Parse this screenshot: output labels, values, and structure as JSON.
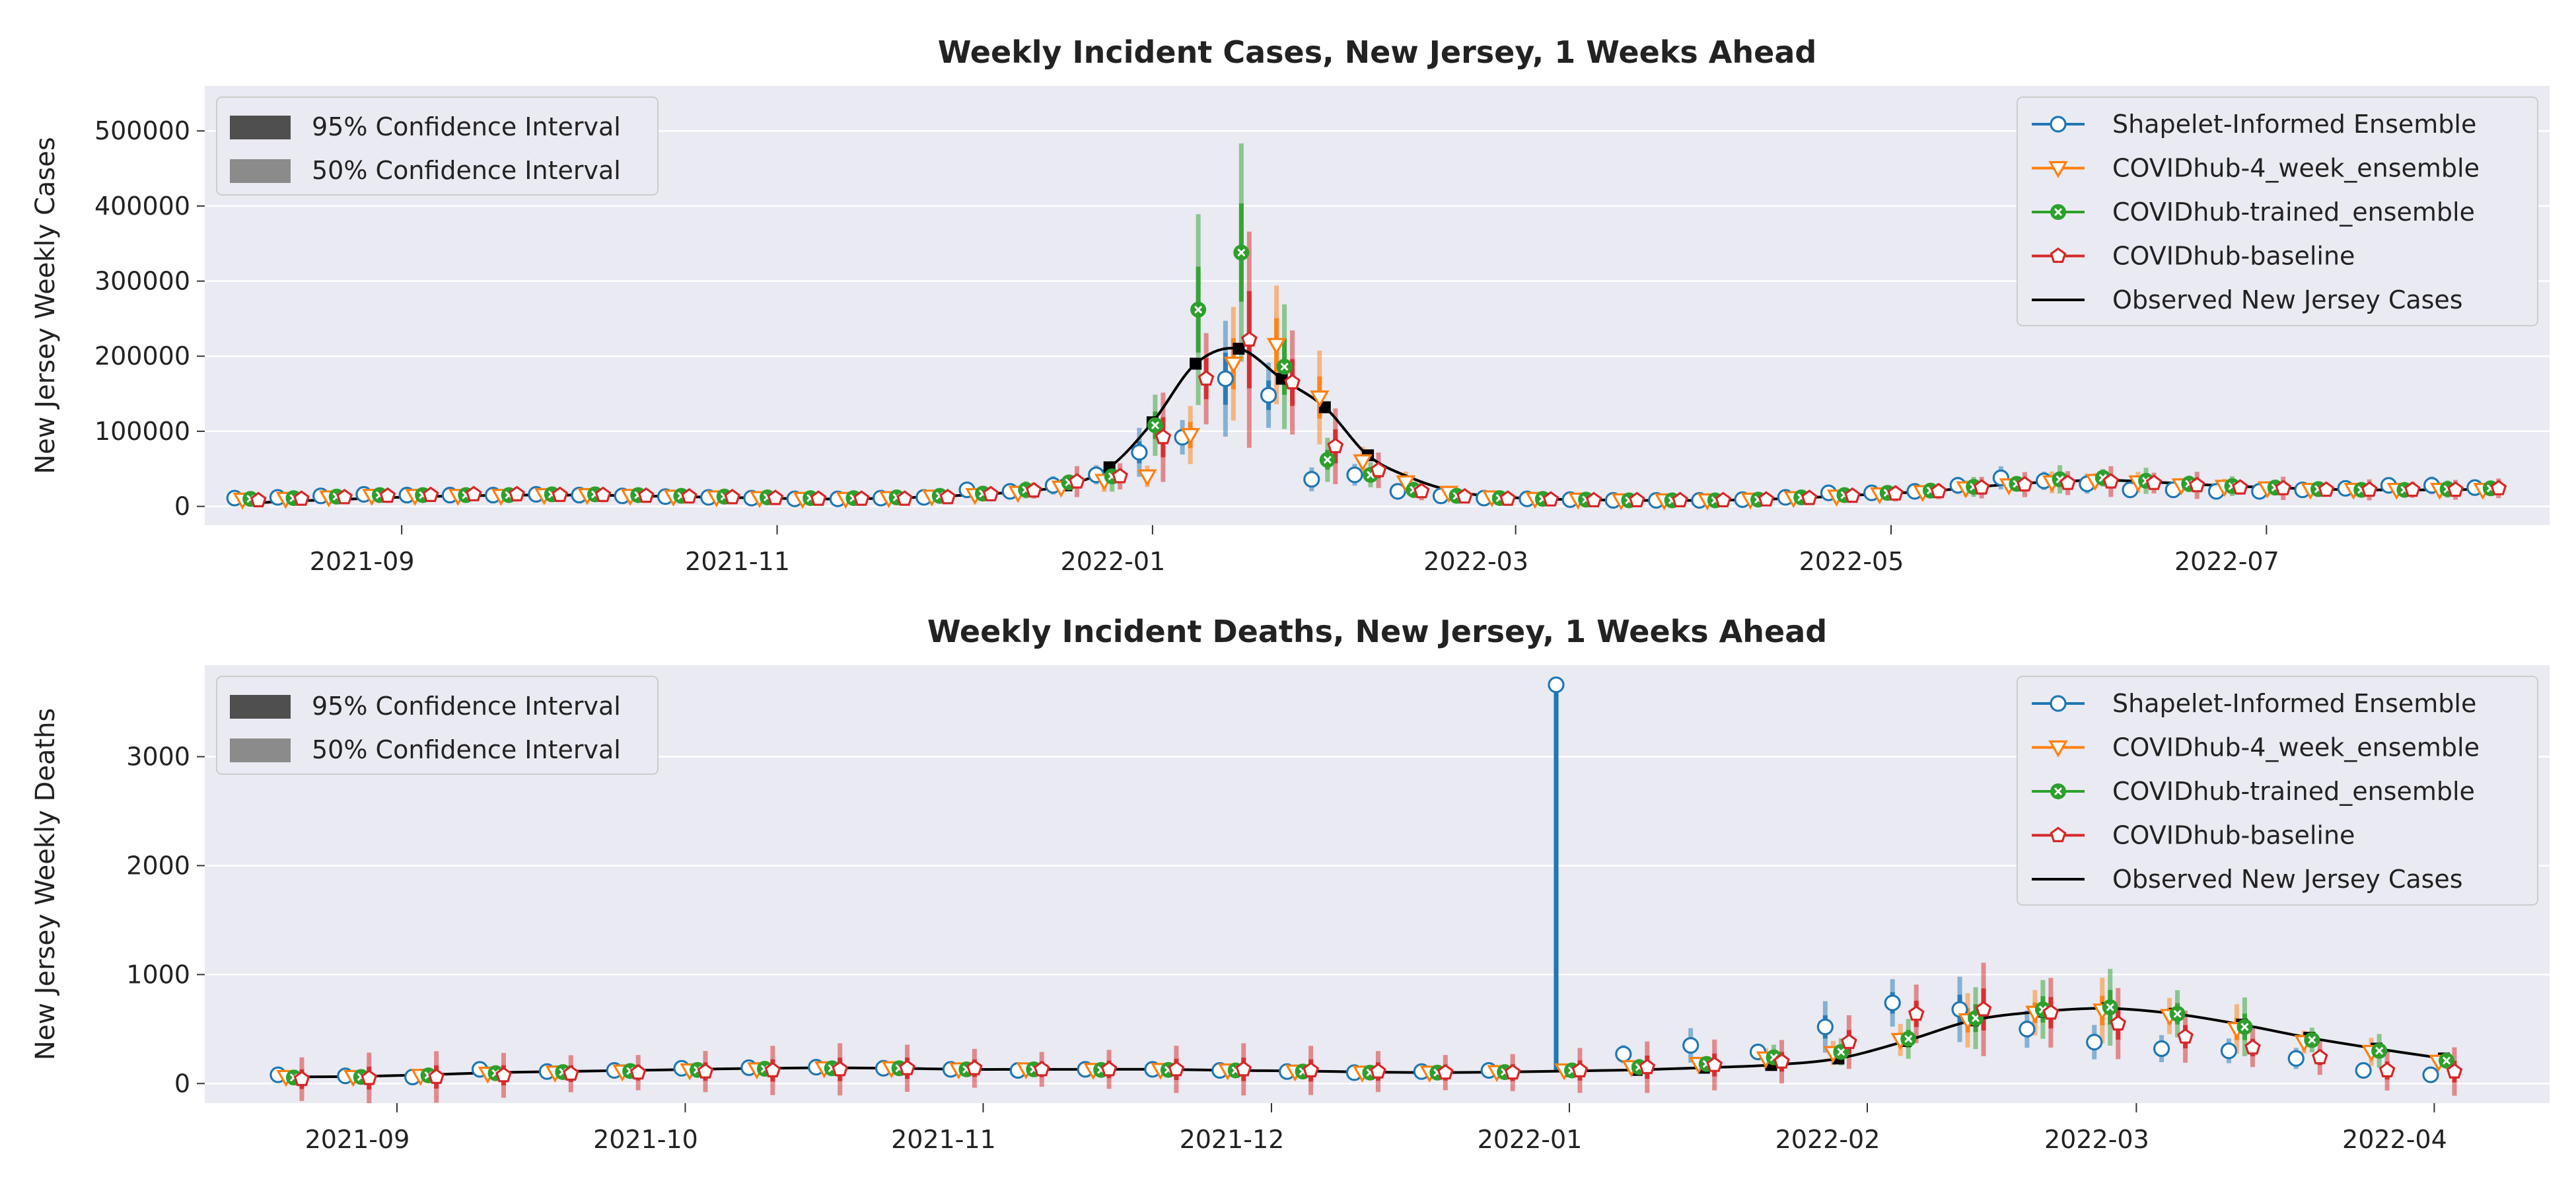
{
  "chart_data": [
    {
      "type": "line",
      "title": "Weekly Incident Cases, New Jersey, 1 Weeks Ahead",
      "xlabel": "",
      "ylabel": "New Jersey Weekly Cases",
      "x_ticks": [
        "2021-09",
        "2021-11",
        "2022-01",
        "2022-03",
        "2022-05",
        "2022-07"
      ],
      "y_ticks": [
        "0",
        "100000",
        "200000",
        "300000",
        "400000",
        "500000"
      ],
      "ylim": [
        -25000,
        560000
      ],
      "grid": true,
      "legend_placement": "top-right",
      "interval_legend": [
        "95% Confidence Interval",
        "50% Confidence Interval"
      ],
      "series_names": [
        "Shapelet-Informed Ensemble",
        "COVIDhub-4_week_ensemble",
        "COVIDhub-trained_ensemble",
        "COVIDhub-baseline",
        "Observed New Jersey Cases"
      ],
      "colors": {
        "shapelet": "#1f77b4",
        "cdc4": "#ff7f0e",
        "trained": "#2ca02c",
        "baseline": "#d62728",
        "observed": "#000000"
      },
      "dates": [
        "2021-08-07",
        "2021-08-14",
        "2021-08-21",
        "2021-08-28",
        "2021-09-04",
        "2021-09-11",
        "2021-09-18",
        "2021-09-25",
        "2021-10-02",
        "2021-10-09",
        "2021-10-16",
        "2021-10-23",
        "2021-10-30",
        "2021-11-06",
        "2021-11-13",
        "2021-11-20",
        "2021-11-27",
        "2021-12-04",
        "2021-12-11",
        "2021-12-18",
        "2021-12-25",
        "2022-01-01",
        "2022-01-08",
        "2022-01-15",
        "2022-01-22",
        "2022-01-29",
        "2022-02-05",
        "2022-02-12",
        "2022-02-19",
        "2022-02-26",
        "2022-03-05",
        "2022-03-12",
        "2022-03-19",
        "2022-03-26",
        "2022-04-02",
        "2022-04-09",
        "2022-04-16",
        "2022-04-23",
        "2022-04-30",
        "2022-05-07",
        "2022-05-14",
        "2022-05-21",
        "2022-05-28",
        "2022-06-04",
        "2022-06-11",
        "2022-06-18",
        "2022-06-25",
        "2022-07-02",
        "2022-07-09",
        "2022-07-16",
        "2022-07-23",
        "2022-07-30",
        "2022-08-06"
      ],
      "observed": [
        4000,
        7000,
        9000,
        11000,
        13000,
        14000,
        15000,
        15000,
        15000,
        14000,
        13000,
        12000,
        11000,
        10000,
        10000,
        11000,
        13000,
        16000,
        20000,
        28000,
        52000,
        112000,
        190000,
        210000,
        170000,
        132000,
        68000,
        38000,
        20000,
        13000,
        10000,
        9000,
        8000,
        8000,
        8000,
        9000,
        11000,
        14000,
        17000,
        20000,
        25000,
        30000,
        33000,
        35000,
        33000,
        30000,
        27000,
        25000,
        23000,
        22000,
        22000,
        22000,
        23000
      ],
      "forecasts": {
        "shapelet": [
          11000,
          12000,
          14000,
          16000,
          15000,
          15000,
          15000,
          16000,
          15000,
          14000,
          13000,
          12000,
          11000,
          10000,
          10000,
          11000,
          12000,
          22000,
          20000,
          28000,
          42000,
          72000,
          92000,
          170000,
          148000,
          36000,
          42000,
          20000,
          14000,
          11000,
          10000,
          9000,
          8000,
          8000,
          8000,
          9000,
          12000,
          18000,
          18000,
          20000,
          28000,
          38000,
          34000,
          30000,
          22000,
          22000,
          20000,
          20000,
          22000,
          24000,
          28000,
          28000,
          25000
        ],
        "cdc4": [
          9000,
          10000,
          12000,
          14000,
          14000,
          14000,
          14000,
          15000,
          15000,
          14000,
          13000,
          12000,
          11000,
          10000,
          10000,
          11000,
          13000,
          15000,
          18000,
          25000,
          34000,
          40000,
          95000,
          190000,
          215000,
          145000,
          60000,
          32000,
          18000,
          12000,
          10000,
          9000,
          8000,
          8000,
          8000,
          9000,
          11000,
          13000,
          16000,
          19000,
          24000,
          28000,
          32000,
          34000,
          32000,
          28000,
          26000,
          24000,
          22000,
          22000,
          22000,
          22000,
          22000
        ],
        "trained": [
          10000,
          11000,
          13000,
          15000,
          15000,
          15000,
          15000,
          16000,
          16000,
          15000,
          14000,
          13000,
          12000,
          11000,
          11000,
          12000,
          14000,
          17000,
          22000,
          32000,
          40000,
          108000,
          262000,
          338000,
          186000,
          62000,
          42000,
          22000,
          14000,
          11000,
          10000,
          9000,
          8000,
          8000,
          8000,
          9000,
          12000,
          15000,
          18000,
          21000,
          26000,
          30000,
          36000,
          38000,
          34000,
          30000,
          27000,
          25000,
          23000,
          22000,
          22000,
          23000,
          24000
        ],
        "baseline": [
          8000,
          10000,
          12000,
          14000,
          15000,
          16000,
          16000,
          15000,
          15000,
          14000,
          13000,
          12000,
          11000,
          10000,
          10000,
          10000,
          12000,
          16000,
          21000,
          33000,
          40000,
          92000,
          170000,
          222000,
          165000,
          80000,
          48000,
          20000,
          13000,
          10000,
          9000,
          8000,
          8000,
          8000,
          8000,
          9000,
          11000,
          14000,
          17000,
          20000,
          25000,
          29000,
          31000,
          33000,
          31000,
          28000,
          25000,
          24000,
          22000,
          22000,
          22000,
          22000,
          24000
        ]
      }
    },
    {
      "type": "line",
      "title": "Weekly Incident Deaths, New Jersey, 1 Weeks Ahead",
      "xlabel": "",
      "ylabel": "New Jersey Weekly Deaths",
      "x_ticks": [
        "2021-09",
        "2021-10",
        "2021-11",
        "2021-12",
        "2022-01",
        "2022-02",
        "2022-03",
        "2022-04"
      ],
      "y_ticks": [
        "0",
        "1000",
        "2000",
        "3000"
      ],
      "ylim": [
        -180,
        3840
      ],
      "grid": true,
      "legend_placement": "top-right",
      "interval_legend": [
        "95% Confidence Interval",
        "50% Confidence Interval"
      ],
      "series_names": [
        "Shapelet-Informed Ensemble",
        "COVIDhub-4_week_ensemble",
        "COVIDhub-trained_ensemble",
        "COVIDhub-baseline",
        "Observed New Jersey Cases"
      ],
      "colors": {
        "shapelet": "#1f77b4",
        "cdc4": "#ff7f0e",
        "trained": "#2ca02c",
        "baseline": "#d62728",
        "observed": "#000000"
      },
      "dates": [
        "2021-08-21",
        "2021-08-28",
        "2021-09-04",
        "2021-09-11",
        "2021-09-18",
        "2021-09-25",
        "2021-10-02",
        "2021-10-09",
        "2021-10-16",
        "2021-10-23",
        "2021-10-30",
        "2021-11-06",
        "2021-11-13",
        "2021-11-20",
        "2021-11-27",
        "2021-12-04",
        "2021-12-11",
        "2021-12-18",
        "2021-12-25",
        "2022-01-01",
        "2022-01-08",
        "2022-01-15",
        "2022-01-22",
        "2022-01-29",
        "2022-02-05",
        "2022-02-12",
        "2022-02-19",
        "2022-02-26",
        "2022-03-05",
        "2022-03-12",
        "2022-03-19",
        "2022-03-26",
        "2022-04-02"
      ],
      "observed": [
        60,
        65,
        80,
        100,
        110,
        120,
        130,
        140,
        145,
        140,
        130,
        130,
        130,
        130,
        120,
        115,
        105,
        100,
        105,
        115,
        125,
        145,
        170,
        230,
        390,
        580,
        660,
        690,
        640,
        540,
        420,
        320,
        230
      ],
      "forecasts": {
        "shapelet": [
          80,
          70,
          60,
          130,
          110,
          120,
          140,
          145,
          150,
          140,
          130,
          120,
          130,
          130,
          120,
          110,
          100,
          110,
          120,
          3660,
          270,
          350,
          290,
          520,
          740,
          680,
          500,
          380,
          320,
          300,
          230,
          120,
          80
        ],
        "cdc4": [
          60,
          60,
          70,
          90,
          100,
          110,
          120,
          130,
          140,
          140,
          130,
          130,
          125,
          125,
          120,
          110,
          100,
          100,
          105,
          120,
          150,
          180,
          230,
          280,
          400,
          580,
          650,
          670,
          620,
          500,
          380,
          290,
          200
        ],
        "trained": [
          55,
          60,
          75,
          95,
          105,
          115,
          125,
          135,
          140,
          140,
          130,
          130,
          125,
          125,
          120,
          110,
          100,
          100,
          105,
          120,
          150,
          180,
          240,
          290,
          410,
          600,
          680,
          700,
          640,
          520,
          400,
          300,
          210
        ],
        "baseline": [
          40,
          50,
          60,
          75,
          90,
          100,
          110,
          120,
          130,
          140,
          140,
          130,
          130,
          130,
          130,
          120,
          110,
          100,
          100,
          120,
          150,
          170,
          200,
          380,
          640,
          680,
          650,
          550,
          430,
          330,
          240,
          120,
          110
        ]
      }
    }
  ]
}
